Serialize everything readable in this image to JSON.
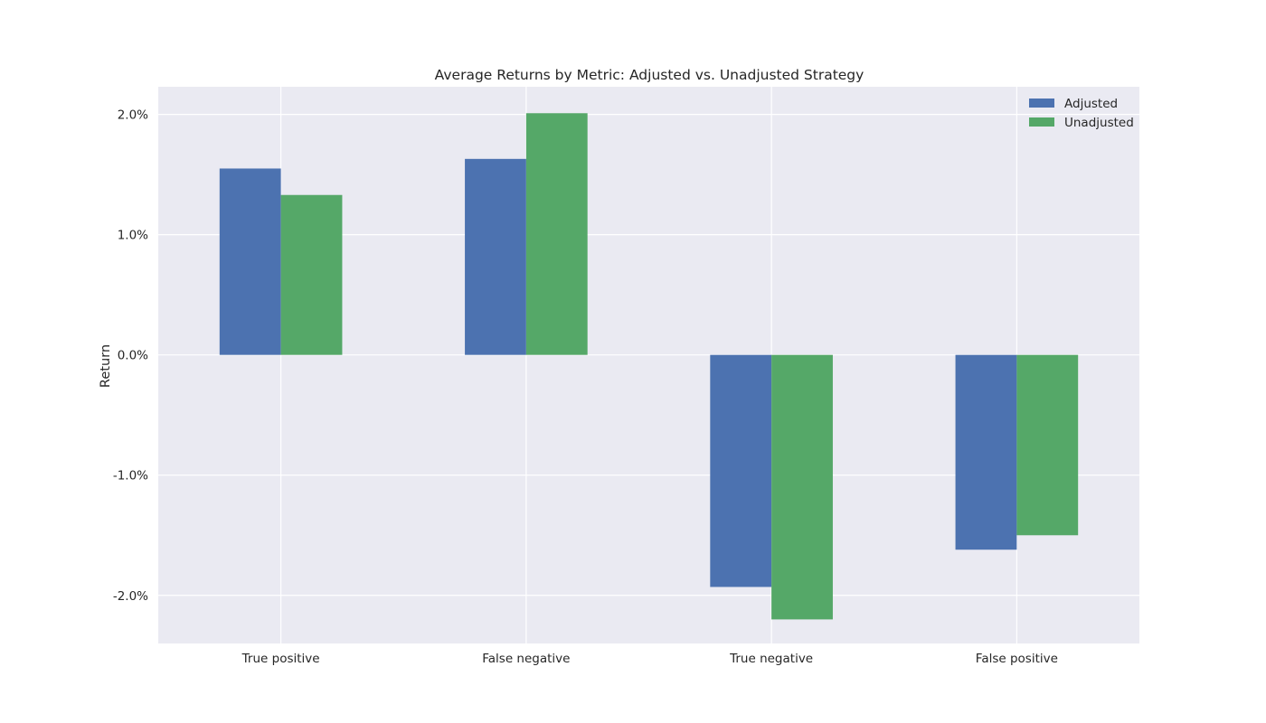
{
  "chart_data": {
    "type": "bar",
    "title": "Average Returns by Metric: Adjusted vs. Unadjusted Strategy",
    "xlabel": "",
    "ylabel": "Return",
    "categories": [
      "True positive",
      "False negative",
      "True negative",
      "False positive"
    ],
    "series": [
      {
        "name": "Adjusted",
        "color": "#4c72b0",
        "values": [
          1.55,
          1.63,
          -1.93,
          -1.62
        ]
      },
      {
        "name": "Unadjusted",
        "color": "#55a868",
        "values": [
          1.33,
          2.01,
          -2.2,
          -1.5
        ]
      }
    ],
    "ylim": [
      -2.4,
      2.23
    ],
    "yticks": [
      2.0,
      1.0,
      0.0,
      -1.0,
      -2.0
    ],
    "ytick_labels": [
      "2.0%",
      "1.0%",
      "0.0%",
      "-1.0%",
      "-2.0%"
    ],
    "grid": true,
    "legend_position": "top-right",
    "background_color": "#eaeaf2",
    "grid_color": "#ffffff"
  }
}
